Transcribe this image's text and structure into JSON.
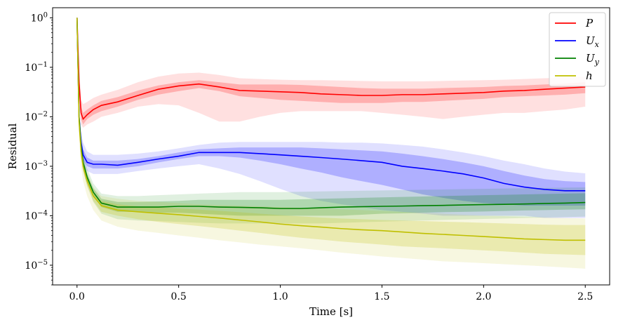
{
  "chart_data": {
    "type": "line",
    "xlabel": "Time [s]",
    "ylabel": "Residual",
    "xlim": [
      -0.12,
      2.62
    ],
    "ylim": [
      4e-06,
      1.6
    ],
    "yscale": "log",
    "grid": false,
    "legend_position": "top-right",
    "x_ticks": [
      0.0,
      0.5,
      1.0,
      1.5,
      2.0,
      2.5
    ],
    "x_tick_labels": [
      "0.0",
      "0.5",
      "1.0",
      "1.5",
      "2.0",
      "2.5"
    ],
    "y_ticks": [
      1e-05,
      0.0001,
      0.001,
      0.01,
      0.1,
      1
    ],
    "y_tick_labels": [
      {
        "base": "10",
        "exp": "−5"
      },
      {
        "base": "10",
        "exp": "−4"
      },
      {
        "base": "10",
        "exp": "−3"
      },
      {
        "base": "10",
        "exp": "−2"
      },
      {
        "base": "10",
        "exp": "−1"
      },
      {
        "base": "10",
        "exp": "0"
      }
    ],
    "series": [
      {
        "name": "P",
        "sub": "",
        "color": "#ff0000",
        "x": [
          0.0,
          0.01,
          0.02,
          0.03,
          0.05,
          0.08,
          0.12,
          0.2,
          0.3,
          0.4,
          0.5,
          0.6,
          0.7,
          0.8,
          0.9,
          1.0,
          1.1,
          1.2,
          1.3,
          1.4,
          1.5,
          1.6,
          1.7,
          1.8,
          1.9,
          2.0,
          2.1,
          2.2,
          2.3,
          2.4,
          2.5
        ],
        "median": [
          1.0,
          0.05,
          0.012,
          0.009,
          0.011,
          0.014,
          0.017,
          0.02,
          0.027,
          0.036,
          0.042,
          0.046,
          0.04,
          0.034,
          0.033,
          0.032,
          0.031,
          0.029,
          0.028,
          0.027,
          0.027,
          0.028,
          0.028,
          0.029,
          0.03,
          0.031,
          0.033,
          0.034,
          0.036,
          0.038,
          0.04
        ],
        "q1": [
          1.0,
          0.035,
          0.009,
          0.007,
          0.009,
          0.011,
          0.013,
          0.016,
          0.022,
          0.028,
          0.033,
          0.038,
          0.033,
          0.026,
          0.024,
          0.022,
          0.021,
          0.02,
          0.019,
          0.019,
          0.019,
          0.02,
          0.02,
          0.021,
          0.022,
          0.023,
          0.025,
          0.026,
          0.027,
          0.028,
          0.03
        ],
        "q3": [
          1.0,
          0.07,
          0.016,
          0.012,
          0.014,
          0.017,
          0.021,
          0.025,
          0.034,
          0.043,
          0.05,
          0.055,
          0.05,
          0.045,
          0.045,
          0.045,
          0.044,
          0.042,
          0.04,
          0.038,
          0.037,
          0.037,
          0.037,
          0.038,
          0.039,
          0.04,
          0.042,
          0.043,
          0.045,
          0.047,
          0.05
        ],
        "min": [
          1.0,
          0.02,
          0.007,
          0.006,
          0.007,
          0.008,
          0.01,
          0.012,
          0.016,
          0.018,
          0.017,
          0.012,
          0.008,
          0.008,
          0.01,
          0.012,
          0.013,
          0.013,
          0.013,
          0.013,
          0.012,
          0.011,
          0.01,
          0.009,
          0.01,
          0.011,
          0.012,
          0.012,
          0.013,
          0.014,
          0.016
        ],
        "max": [
          1.0,
          0.1,
          0.022,
          0.018,
          0.02,
          0.024,
          0.028,
          0.035,
          0.05,
          0.065,
          0.075,
          0.078,
          0.07,
          0.06,
          0.058,
          0.056,
          0.055,
          0.055,
          0.054,
          0.053,
          0.052,
          0.052,
          0.052,
          0.053,
          0.054,
          0.055,
          0.056,
          0.058,
          0.06,
          0.062,
          0.065
        ]
      },
      {
        "name": "U",
        "sub": "x",
        "color": "#0000ff",
        "x": [
          0.0,
          0.01,
          0.02,
          0.03,
          0.05,
          0.08,
          0.12,
          0.2,
          0.3,
          0.4,
          0.5,
          0.6,
          0.7,
          0.8,
          0.9,
          1.0,
          1.1,
          1.2,
          1.3,
          1.4,
          1.5,
          1.6,
          1.7,
          1.8,
          1.9,
          2.0,
          2.1,
          2.2,
          2.3,
          2.4,
          2.5
        ],
        "median": [
          1.0,
          0.01,
          0.003,
          0.0017,
          0.0012,
          0.0011,
          0.0011,
          0.00105,
          0.0012,
          0.0014,
          0.0016,
          0.0019,
          0.0019,
          0.0019,
          0.0018,
          0.0017,
          0.0016,
          0.0015,
          0.0014,
          0.0013,
          0.0012,
          0.001,
          0.0009,
          0.0008,
          0.0007,
          0.00058,
          0.00045,
          0.00038,
          0.00034,
          0.00032,
          0.00032
        ],
        "q1": [
          1.0,
          0.007,
          0.002,
          0.0013,
          0.001,
          0.0009,
          0.0009,
          0.0009,
          0.001,
          0.0012,
          0.0014,
          0.0016,
          0.0016,
          0.0015,
          0.0013,
          0.0011,
          0.0009,
          0.00075,
          0.0006,
          0.0005,
          0.00042,
          0.00034,
          0.00027,
          0.00023,
          0.0002,
          0.00018,
          0.00017,
          0.00016,
          0.00016,
          0.00016,
          0.00016
        ],
        "q3": [
          1.0,
          0.014,
          0.004,
          0.0022,
          0.0015,
          0.0013,
          0.0013,
          0.0013,
          0.0014,
          0.0016,
          0.0019,
          0.0022,
          0.0023,
          0.0024,
          0.0024,
          0.0024,
          0.0024,
          0.0023,
          0.0022,
          0.0021,
          0.002,
          0.0018,
          0.0016,
          0.0014,
          0.0012,
          0.001,
          0.0008,
          0.00065,
          0.00055,
          0.0005,
          0.00048
        ],
        "min": [
          1.0,
          0.005,
          0.0015,
          0.001,
          0.0008,
          0.0007,
          0.0007,
          0.0007,
          0.0008,
          0.0009,
          0.001,
          0.0011,
          0.0009,
          0.0007,
          0.0005,
          0.00035,
          0.00025,
          0.0002,
          0.00017,
          0.00015,
          0.00013,
          0.00012,
          0.00011,
          0.0001,
          0.0001,
          0.0001,
          0.0001,
          0.0001,
          9e-05,
          9e-05,
          9e-05
        ],
        "max": [
          1.0,
          0.018,
          0.005,
          0.003,
          0.002,
          0.0017,
          0.0017,
          0.0017,
          0.0018,
          0.002,
          0.0023,
          0.0027,
          0.003,
          0.0031,
          0.0031,
          0.0031,
          0.0031,
          0.0031,
          0.003,
          0.003,
          0.0029,
          0.0027,
          0.0025,
          0.0022,
          0.0019,
          0.0016,
          0.0013,
          0.0011,
          0.0009,
          0.00078,
          0.00072
        ]
      },
      {
        "name": "U",
        "sub": "y",
        "color": "#008000",
        "x": [
          0.0,
          0.01,
          0.02,
          0.03,
          0.05,
          0.08,
          0.12,
          0.2,
          0.3,
          0.4,
          0.5,
          0.6,
          0.7,
          0.8,
          0.9,
          1.0,
          1.1,
          1.2,
          1.3,
          1.4,
          1.5,
          1.6,
          1.7,
          1.8,
          1.9,
          2.0,
          2.1,
          2.2,
          2.3,
          2.4,
          2.5
        ],
        "median": [
          1.0,
          0.01,
          0.0025,
          0.0012,
          0.0006,
          0.0003,
          0.00018,
          0.00015,
          0.00015,
          0.00015,
          0.000155,
          0.000155,
          0.00015,
          0.000148,
          0.000145,
          0.00014,
          0.00014,
          0.000145,
          0.00015,
          0.000152,
          0.000155,
          0.000157,
          0.00016,
          0.000162,
          0.000165,
          0.000168,
          0.00017,
          0.000173,
          0.000177,
          0.00018,
          0.000185
        ],
        "q1": [
          1.0,
          0.008,
          0.002,
          0.001,
          0.0005,
          0.00025,
          0.00015,
          0.00012,
          0.00012,
          0.000115,
          0.000115,
          0.00011,
          0.000105,
          0.0001,
          0.0001,
          0.0001,
          0.0001,
          0.0001,
          0.0001,
          0.000105,
          0.00011,
          0.000112,
          0.000115,
          0.000118,
          0.00012,
          0.000122,
          0.000125,
          0.000128,
          0.00013,
          0.000133,
          0.000135
        ],
        "q3": [
          1.0,
          0.013,
          0.003,
          0.0014,
          0.0007,
          0.00036,
          0.00022,
          0.00019,
          0.00019,
          0.000195,
          0.0002,
          0.00021,
          0.00021,
          0.00021,
          0.00021,
          0.00021,
          0.000215,
          0.00022,
          0.000225,
          0.00023,
          0.000235,
          0.00024,
          0.000245,
          0.00025,
          0.000255,
          0.00026,
          0.000265,
          0.00027,
          0.000275,
          0.00028,
          0.000285
        ],
        "min": [
          1.0,
          0.006,
          0.0015,
          0.0008,
          0.0004,
          0.00019,
          0.00011,
          8.5e-05,
          8e-05,
          7.8e-05,
          7.5e-05,
          7.2e-05,
          7e-05,
          7e-05,
          7e-05,
          7e-05,
          7e-05,
          7e-05,
          7.2e-05,
          7.4e-05,
          7.6e-05,
          7.8e-05,
          8e-05,
          8.2e-05,
          8.4e-05,
          8.6e-05,
          8.8e-05,
          9e-05,
          9.2e-05,
          9.4e-05,
          9.6e-05
        ],
        "max": [
          1.0,
          0.016,
          0.0035,
          0.0017,
          0.0009,
          0.00045,
          0.00028,
          0.00025,
          0.00025,
          0.00026,
          0.00027,
          0.00028,
          0.00029,
          0.0003,
          0.0003,
          0.0003,
          0.000305,
          0.00031,
          0.000315,
          0.00032,
          0.000325,
          0.00033,
          0.000335,
          0.00034,
          0.000345,
          0.00035,
          0.000355,
          0.00036,
          0.000365,
          0.00037,
          0.000375
        ]
      },
      {
        "name": "h",
        "sub": "",
        "color": "#bfbf00",
        "x": [
          0.0,
          0.01,
          0.02,
          0.03,
          0.05,
          0.08,
          0.12,
          0.2,
          0.3,
          0.4,
          0.5,
          0.6,
          0.7,
          0.8,
          0.9,
          1.0,
          1.1,
          1.2,
          1.3,
          1.4,
          1.5,
          1.6,
          1.7,
          1.8,
          1.9,
          2.0,
          2.1,
          2.2,
          2.3,
          2.4,
          2.5
        ],
        "median": [
          1.0,
          0.008,
          0.002,
          0.001,
          0.0005,
          0.00025,
          0.00016,
          0.00013,
          0.00012,
          0.000112,
          0.000105,
          9.7e-05,
          9e-05,
          8.2e-05,
          7.5e-05,
          6.8e-05,
          6.3e-05,
          5.9e-05,
          5.5e-05,
          5.2e-05,
          5e-05,
          4.7e-05,
          4.4e-05,
          4.2e-05,
          4e-05,
          3.8e-05,
          3.6e-05,
          3.4e-05,
          3.3e-05,
          3.2e-05,
          3.2e-05
        ],
        "q1": [
          1.0,
          0.006,
          0.0015,
          0.0008,
          0.0004,
          0.0002,
          0.00012,
          0.0001,
          8.5e-05,
          7.5e-05,
          6.8e-05,
          6.2e-05,
          5.6e-05,
          5e-05,
          4.5e-05,
          4e-05,
          3.6e-05,
          3.3e-05,
          3e-05,
          2.8e-05,
          2.6e-05,
          2.4e-05,
          2.3e-05,
          2.2e-05,
          2.1e-05,
          2e-05,
          1.9e-05,
          1.8e-05,
          1.7e-05,
          1.65e-05,
          1.6e-05
        ],
        "q3": [
          1.0,
          0.011,
          0.0028,
          0.0013,
          0.0006,
          0.0003,
          0.0002,
          0.00017,
          0.000155,
          0.000148,
          0.00014,
          0.000133,
          0.000126,
          0.000118,
          0.00011,
          0.000103,
          9.7e-05,
          9.2e-05,
          8.8e-05,
          8.5e-05,
          8.2e-05,
          8e-05,
          7.8e-05,
          7.6e-05,
          7.4e-05,
          7.2e-05,
          7e-05,
          6.8e-05,
          6.6e-05,
          6.5e-05,
          6.5e-05
        ],
        "min": [
          1.0,
          0.004,
          0.001,
          0.0005,
          0.00025,
          0.00013,
          8e-05,
          6e-05,
          5e-05,
          4.5e-05,
          4e-05,
          3.6e-05,
          3.2e-05,
          2.9e-05,
          2.6e-05,
          2.4e-05,
          2.2e-05,
          2e-05,
          1.8e-05,
          1.65e-05,
          1.5e-05,
          1.4e-05,
          1.3e-05,
          1.2e-05,
          1.15e-05,
          1.1e-05,
          1.05e-05,
          1e-05,
          9.5e-06,
          9e-06,
          8.5e-06
        ],
        "max": [
          1.0,
          0.014,
          0.0035,
          0.0016,
          0.00075,
          0.00038,
          0.00025,
          0.00022,
          0.0002,
          0.00019,
          0.00018,
          0.00017,
          0.000165,
          0.00016,
          0.000155,
          0.00015,
          0.000145,
          0.00014,
          0.000135,
          0.00013,
          0.000125,
          0.00012,
          0.000115,
          0.00011,
          0.000105,
          0.0001,
          9.8e-05,
          9.5e-05,
          9.3e-05,
          9e-05,
          8.8e-05
        ]
      }
    ]
  }
}
